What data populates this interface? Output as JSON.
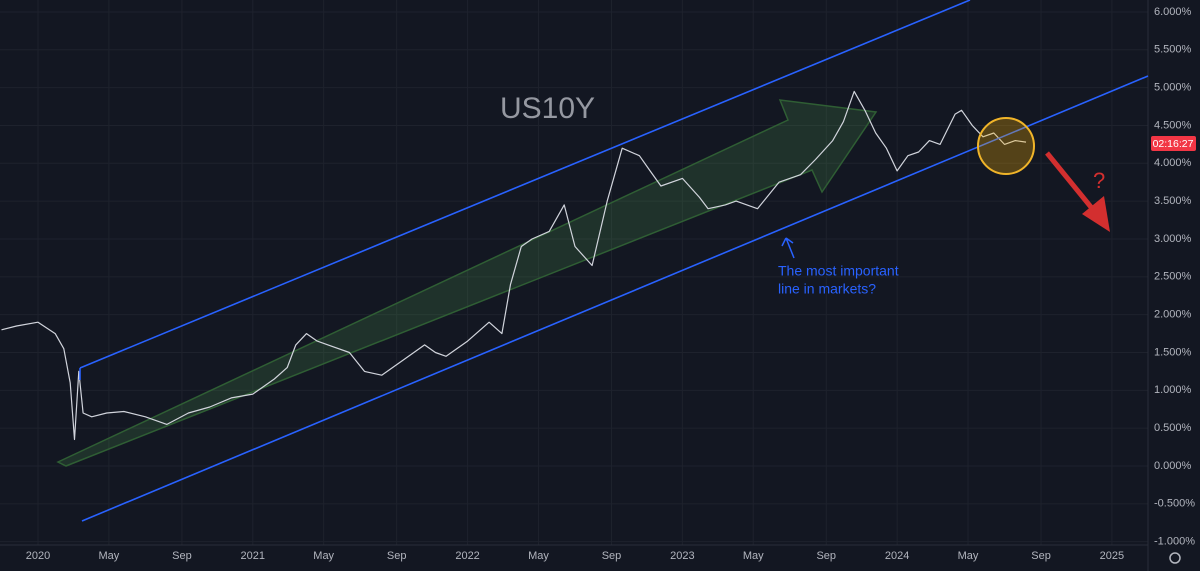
{
  "chart_data": {
    "type": "line",
    "title": "US10Y",
    "annotations": {
      "note": [
        "The most important",
        "line in markets?"
      ],
      "question": "?",
      "countdown": "02:16:27"
    },
    "x": [
      2019.83,
      2019.9,
      2020.0,
      2020.08,
      2020.12,
      2020.15,
      2020.17,
      2020.19,
      2020.21,
      2020.25,
      2020.32,
      2020.4,
      2020.5,
      2020.6,
      2020.7,
      2020.8,
      2020.9,
      2021.0,
      2021.1,
      2021.16,
      2021.2,
      2021.25,
      2021.3,
      2021.35,
      2021.45,
      2021.52,
      2021.6,
      2021.7,
      2021.8,
      2021.85,
      2021.9,
      2022.0,
      2022.1,
      2022.16,
      2022.2,
      2022.25,
      2022.3,
      2022.38,
      2022.45,
      2022.5,
      2022.58,
      2022.65,
      2022.72,
      2022.8,
      2022.85,
      2022.9,
      2023.0,
      2023.08,
      2023.12,
      2023.2,
      2023.25,
      2023.35,
      2023.45,
      2023.55,
      2023.62,
      2023.7,
      2023.75,
      2023.8,
      2023.85,
      2023.9,
      2023.95,
      2024.0,
      2024.05,
      2024.1,
      2024.15,
      2024.2,
      2024.27,
      2024.3,
      2024.35,
      2024.4,
      2024.45,
      2024.5,
      2024.55,
      2024.6
    ],
    "series": [
      {
        "name": "US10Y",
        "color": "#d1d4dc",
        "values": [
          1.8,
          1.85,
          1.9,
          1.75,
          1.55,
          1.1,
          0.35,
          1.25,
          0.7,
          0.65,
          0.7,
          0.72,
          0.65,
          0.55,
          0.7,
          0.78,
          0.9,
          0.95,
          1.15,
          1.3,
          1.6,
          1.75,
          1.65,
          1.6,
          1.5,
          1.25,
          1.2,
          1.4,
          1.6,
          1.5,
          1.45,
          1.65,
          1.9,
          1.75,
          2.4,
          2.9,
          3.0,
          3.1,
          3.45,
          2.9,
          2.65,
          3.5,
          4.2,
          4.1,
          3.9,
          3.7,
          3.8,
          3.55,
          3.4,
          3.45,
          3.5,
          3.4,
          3.75,
          3.85,
          4.05,
          4.3,
          4.55,
          4.95,
          4.7,
          4.4,
          4.2,
          3.9,
          4.1,
          4.15,
          4.3,
          4.25,
          4.65,
          4.7,
          4.5,
          4.35,
          4.4,
          4.25,
          4.3,
          4.28
        ]
      }
    ],
    "xlim": [
      2019.823,
      2025.168
    ],
    "ylim": [
      -1.044,
      6.158
    ],
    "xticks": [
      {
        "value": 2020,
        "label": "2020"
      },
      {
        "value": 2020.33,
        "label": "May"
      },
      {
        "value": 2020.67,
        "label": "Sep"
      },
      {
        "value": 2021,
        "label": "2021"
      },
      {
        "value": 2021.33,
        "label": "May"
      },
      {
        "value": 2021.67,
        "label": "Sep"
      },
      {
        "value": 2022,
        "label": "2022"
      },
      {
        "value": 2022.33,
        "label": "May"
      },
      {
        "value": 2022.67,
        "label": "Sep"
      },
      {
        "value": 2023,
        "label": "2023"
      },
      {
        "value": 2023.33,
        "label": "May"
      },
      {
        "value": 2023.67,
        "label": "Sep"
      },
      {
        "value": 2024,
        "label": "2024"
      },
      {
        "value": 2024.33,
        "label": "May"
      },
      {
        "value": 2024.67,
        "label": "Sep"
      },
      {
        "value": 2025,
        "label": "2025"
      }
    ],
    "yticks": [
      {
        "value": -1,
        "label": "-1.000%"
      },
      {
        "value": -0.5,
        "label": "-0.500%"
      },
      {
        "value": 0,
        "label": "0.000%"
      },
      {
        "value": 0.5,
        "label": "0.500%"
      },
      {
        "value": 1,
        "label": "1.000%"
      },
      {
        "value": 1.5,
        "label": "1.500%"
      },
      {
        "value": 2,
        "label": "2.000%"
      },
      {
        "value": 2.5,
        "label": "2.500%"
      },
      {
        "value": 3,
        "label": "3.000%"
      },
      {
        "value": 3.5,
        "label": "3.500%"
      },
      {
        "value": 4,
        "label": "4.000%"
      },
      {
        "value": 4.5,
        "label": "4.500%"
      },
      {
        "value": 5,
        "label": "5.000%"
      },
      {
        "value": 5.5,
        "label": "5.500%"
      },
      {
        "value": 6,
        "label": "6.000%"
      }
    ],
    "grid": true
  }
}
